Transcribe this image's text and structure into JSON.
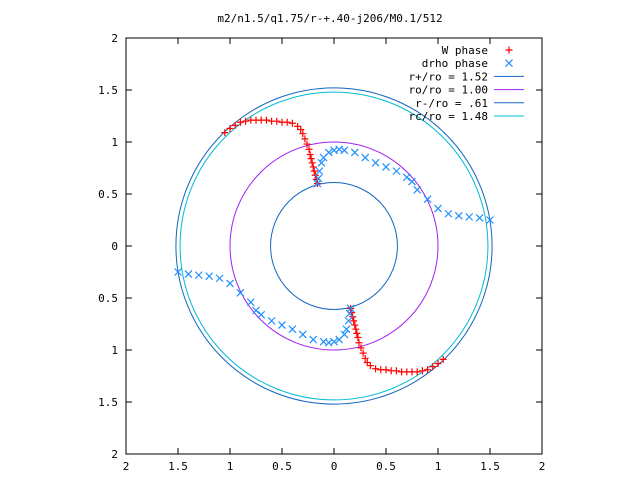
{
  "chart_data": {
    "type": "scatter",
    "title": "m2/n1.5/q1.75/r-+.40-j206/M0.1/512",
    "xlim": [
      -2,
      2
    ],
    "ylim": [
      -2,
      2
    ],
    "x_ticks": [
      -2,
      -1.5,
      -1,
      -0.5,
      0,
      0.5,
      1,
      1.5,
      2
    ],
    "y_ticks": [
      -2,
      -1.5,
      -1,
      -0.5,
      0,
      0.5,
      1,
      1.5,
      2
    ],
    "x_tick_labels": [
      "2",
      "1.5",
      "1",
      "0.5",
      "0",
      "0.5",
      "1",
      "1.5",
      "2"
    ],
    "y_tick_labels": [
      "2",
      "1.5",
      "1",
      "0.5",
      "0",
      "0.5",
      "1",
      "1.5",
      "2"
    ],
    "grid": false,
    "legend_position": "top-right",
    "series": [
      {
        "name": "W phase",
        "marker": "plus",
        "color": "#ff0000",
        "x": [
          -1.05,
          -1.0,
          -0.95,
          -0.9,
          -0.85,
          -0.8,
          -0.75,
          -0.7,
          -0.65,
          -0.6,
          -0.55,
          -0.5,
          -0.45,
          -0.4,
          -0.35,
          -0.32,
          -0.3,
          -0.28,
          -0.26,
          -0.24,
          -0.23,
          -0.22,
          -0.21,
          -0.2,
          -0.19,
          -0.18,
          -0.17,
          -0.16,
          1.05,
          1.0,
          0.95,
          0.9,
          0.85,
          0.8,
          0.75,
          0.7,
          0.65,
          0.6,
          0.55,
          0.5,
          0.45,
          0.4,
          0.35,
          0.32,
          0.3,
          0.28,
          0.26,
          0.24,
          0.23,
          0.22,
          0.21,
          0.2,
          0.19,
          0.18,
          0.17,
          0.16
        ],
        "y": [
          1.09,
          1.13,
          1.16,
          1.19,
          1.2,
          1.21,
          1.21,
          1.21,
          1.21,
          1.2,
          1.2,
          1.19,
          1.19,
          1.18,
          1.15,
          1.12,
          1.08,
          1.03,
          0.98,
          0.93,
          0.88,
          0.84,
          0.8,
          0.76,
          0.72,
          0.68,
          0.64,
          0.6,
          -1.09,
          -1.13,
          -1.16,
          -1.19,
          -1.2,
          -1.21,
          -1.21,
          -1.21,
          -1.21,
          -1.2,
          -1.2,
          -1.19,
          -1.19,
          -1.18,
          -1.15,
          -1.12,
          -1.08,
          -1.03,
          -0.98,
          -0.93,
          -0.88,
          -0.84,
          -0.8,
          -0.76,
          -0.72,
          -0.68,
          -0.64,
          -0.6
        ]
      },
      {
        "name": "drho phase",
        "marker": "x",
        "color": "#1e90ff",
        "x": [
          -0.16,
          -0.15,
          -0.14,
          -0.12,
          -0.1,
          -0.05,
          0.0,
          0.05,
          0.1,
          0.2,
          0.3,
          0.4,
          0.5,
          0.6,
          0.7,
          0.75,
          0.8,
          0.9,
          1.0,
          1.1,
          1.2,
          1.3,
          1.4,
          1.5,
          0.16,
          0.15,
          0.14,
          0.12,
          0.1,
          0.05,
          0.0,
          -0.05,
          -0.1,
          -0.2,
          -0.3,
          -0.4,
          -0.5,
          -0.6,
          -0.7,
          -0.75,
          -0.8,
          -0.9,
          -1.0,
          -1.1,
          -1.2,
          -1.3,
          -1.4,
          -1.5
        ],
        "y": [
          0.6,
          0.65,
          0.72,
          0.8,
          0.85,
          0.9,
          0.92,
          0.93,
          0.92,
          0.9,
          0.85,
          0.8,
          0.76,
          0.72,
          0.66,
          0.62,
          0.54,
          0.45,
          0.36,
          0.31,
          0.29,
          0.28,
          0.27,
          0.25,
          -0.6,
          -0.65,
          -0.72,
          -0.8,
          -0.85,
          -0.9,
          -0.92,
          -0.93,
          -0.92,
          -0.9,
          -0.85,
          -0.8,
          -0.76,
          -0.72,
          -0.66,
          -0.62,
          -0.54,
          -0.45,
          -0.36,
          -0.31,
          -0.29,
          -0.28,
          -0.27,
          -0.25
        ]
      },
      {
        "name": "r+/ro = 1.52",
        "type": "circle",
        "radius": 1.52,
        "color": "#1565c0"
      },
      {
        "name": "ro/ro = 1.00",
        "type": "circle",
        "radius": 1.0,
        "color": "#a020f0"
      },
      {
        "name": "r-/ro = .61",
        "type": "circle",
        "radius": 0.61,
        "color": "#1565c0"
      },
      {
        "name": "rc/ro = 1.48",
        "type": "circle",
        "radius": 1.48,
        "color": "#00bcd4"
      }
    ]
  }
}
